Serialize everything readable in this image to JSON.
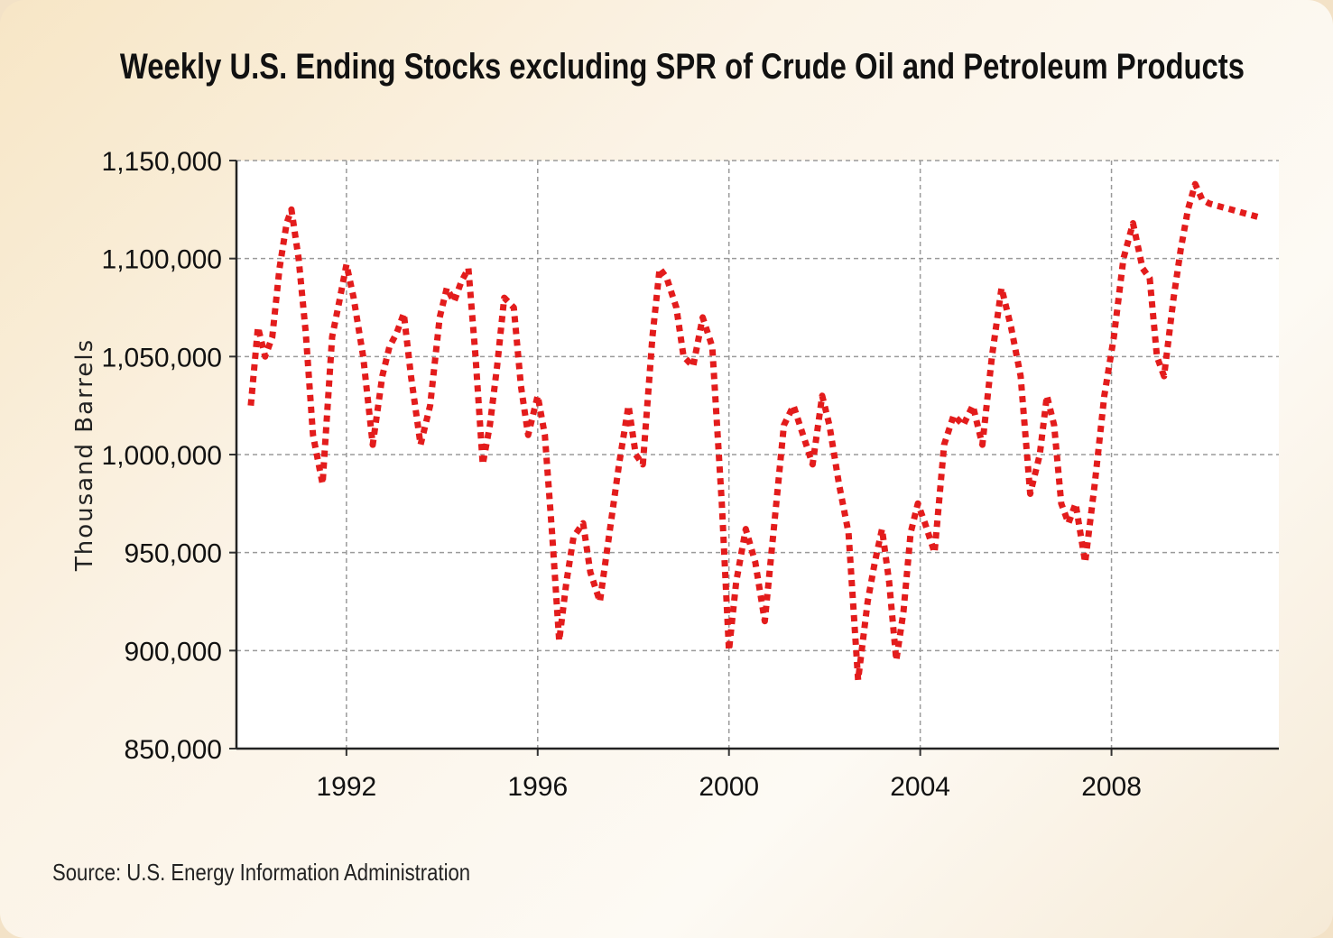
{
  "source": "Source: U.S. Energy Information Administration",
  "chart_data": {
    "type": "line",
    "title": "Weekly U.S. Ending Stocks excluding SPR of Crude Oil and Petroleum Products",
    "xlabel": "",
    "ylabel": "Thousand Barrels",
    "xlim": [
      1989.7,
      2011.5
    ],
    "ylim": [
      850000,
      1150000
    ],
    "x_ticks": [
      1992,
      1996,
      2000,
      2004,
      2008
    ],
    "y_ticks": [
      850000,
      900000,
      950000,
      1000000,
      1050000,
      1100000,
      1150000
    ],
    "y_tick_labels": [
      "850,000",
      "900,000",
      "950,000",
      "1,000,000",
      "1,050,000",
      "1,100,000",
      "1,150,000"
    ],
    "grid": true,
    "line_color": "#e31c1c",
    "line_style": "dotted",
    "series": [
      {
        "name": "",
        "x": [
          1990.0,
          1990.15,
          1990.3,
          1990.45,
          1990.6,
          1990.75,
          1990.85,
          1991.0,
          1991.15,
          1991.3,
          1991.5,
          1991.7,
          1991.85,
          1992.0,
          1992.15,
          1992.35,
          1992.55,
          1992.75,
          1992.9,
          1993.05,
          1993.2,
          1993.35,
          1993.55,
          1993.75,
          1993.95,
          1994.1,
          1994.25,
          1994.4,
          1994.55,
          1994.7,
          1994.85,
          1995.0,
          1995.15,
          1995.3,
          1995.5,
          1995.65,
          1995.8,
          1996.0,
          1996.15,
          1996.3,
          1996.45,
          1996.6,
          1996.75,
          1996.95,
          1997.1,
          1997.3,
          1997.5,
          1997.7,
          1997.9,
          1998.05,
          1998.2,
          1998.4,
          1998.55,
          1998.7,
          1998.9,
          1999.05,
          1999.25,
          1999.45,
          1999.65,
          1999.85,
          2000.0,
          2000.15,
          2000.35,
          2000.55,
          2000.75,
          2000.95,
          2001.15,
          2001.35,
          2001.55,
          2001.75,
          2001.95,
          2002.1,
          2002.3,
          2002.5,
          2002.7,
          2002.9,
          2003.05,
          2003.2,
          2003.35,
          2003.5,
          2003.65,
          2003.8,
          2003.95,
          2004.1,
          2004.3,
          2004.5,
          2004.7,
          2004.9,
          2005.1,
          2005.3,
          2005.5,
          2005.7,
          2005.9,
          2006.1,
          2006.3,
          2006.5,
          2006.65,
          2006.8,
          2006.95,
          2007.1,
          2007.25,
          2007.45,
          2007.65,
          2007.85,
          2008.05,
          2008.25,
          2008.45,
          2008.65,
          2008.8,
          2008.95,
          2009.1,
          2009.3,
          2009.45,
          2009.6,
          2009.75,
          2009.9,
          2010.05,
          2010.2,
          2010.35,
          2010.5,
          2010.65,
          2010.8,
          2010.95,
          2011.1
        ],
        "y": [
          1025000,
          1065000,
          1050000,
          1060000,
          1095000,
          1118000,
          1125000,
          1100000,
          1062000,
          1010000,
          985000,
          1060000,
          1078000,
          1097000,
          1080000,
          1050000,
          1005000,
          1040000,
          1055000,
          1062000,
          1072000,
          1040000,
          1005000,
          1025000,
          1070000,
          1085000,
          1078000,
          1088000,
          1095000,
          1050000,
          995000,
          1015000,
          1045000,
          1080000,
          1075000,
          1035000,
          1010000,
          1030000,
          1010000,
          960000,
          905000,
          935000,
          958000,
          965000,
          940000,
          925000,
          960000,
          995000,
          1025000,
          1000000,
          995000,
          1060000,
          1095000,
          1090000,
          1075000,
          1050000,
          1045000,
          1070000,
          1055000,
          975000,
          900000,
          935000,
          962000,
          945000,
          915000,
          965000,
          1015000,
          1025000,
          1010000,
          995000,
          1030000,
          1015000,
          985000,
          960000,
          885000,
          925000,
          945000,
          962000,
          935000,
          895000,
          920000,
          960000,
          975000,
          965000,
          950000,
          1005000,
          1020000,
          1015000,
          1025000,
          1005000,
          1050000,
          1085000,
          1065000,
          1040000,
          980000,
          1000000,
          1030000,
          1015000,
          975000,
          965000,
          975000,
          945000,
          985000,
          1030000,
          1060000,
          1100000,
          1118000,
          1095000,
          1090000,
          1050000,
          1040000,
          1080000,
          1105000,
          1125000,
          1138000,
          1130000,
          1128000,
          1127000,
          1126000,
          1125000,
          1124000,
          1123000,
          1122000,
          1121000
        ]
      }
    ]
  }
}
